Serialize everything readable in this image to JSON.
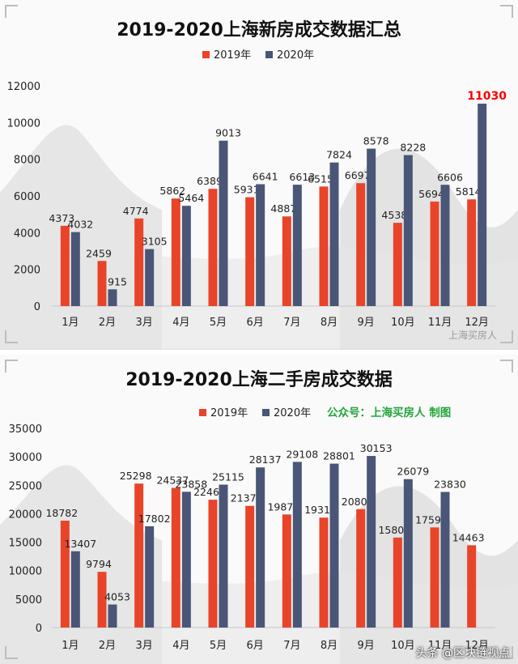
{
  "watermark": "上海买房人",
  "credit": "头条 @区块链视点",
  "chart_data": [
    {
      "type": "bar",
      "title": "2019-2020上海新房成交数据汇总",
      "subtitle": "",
      "categories": [
        "1月",
        "2月",
        "3月",
        "4月",
        "5月",
        "6月",
        "7月",
        "8月",
        "9月",
        "10月",
        "11月",
        "12月"
      ],
      "series": [
        {
          "name": "2019年",
          "color": "#e8442a",
          "values": [
            4373,
            2459,
            4774,
            5862,
            6389,
            5931,
            4887,
            6515,
            6697,
            4538,
            5694,
            5814
          ]
        },
        {
          "name": "2020年",
          "color": "#4a5677",
          "values": [
            4032,
            915,
            3105,
            5464,
            9013,
            6641,
            6613,
            7824,
            8578,
            8228,
            6606,
            11030
          ]
        }
      ],
      "highlight": {
        "series": 1,
        "index": 11,
        "color": "#ff0000"
      },
      "ylim": [
        0,
        12000
      ],
      "yticks": [
        0,
        2000,
        4000,
        6000,
        8000,
        10000,
        12000
      ],
      "xlabel": "",
      "ylabel": "",
      "legend": "top-center",
      "grid": false
    },
    {
      "type": "bar",
      "title": "2019-2020上海二手房成交数据",
      "subtitle": "公众号：上海买房人  制图",
      "subtitle_color": "#22a63a",
      "categories": [
        "1月",
        "2月",
        "3月",
        "4月",
        "5月",
        "6月",
        "7月",
        "8月",
        "9月",
        "10月",
        "11月",
        "12月"
      ],
      "series": [
        {
          "name": "2019年",
          "color": "#e8442a",
          "values": [
            18782,
            9794,
            25298,
            24537,
            22467,
            21379,
            19873,
            19319,
            20803,
            15809,
            17597,
            14463
          ]
        },
        {
          "name": "2020年",
          "color": "#4a5677",
          "values": [
            13407,
            4053,
            17802,
            23858,
            25115,
            28137,
            29108,
            28801,
            30153,
            26079,
            23830,
            null
          ]
        }
      ],
      "ylim": [
        0,
        35000
      ],
      "yticks": [
        0,
        5000,
        10000,
        15000,
        20000,
        25000,
        30000,
        35000
      ],
      "xlabel": "",
      "ylabel": "",
      "legend": "top-center",
      "grid": false
    }
  ]
}
